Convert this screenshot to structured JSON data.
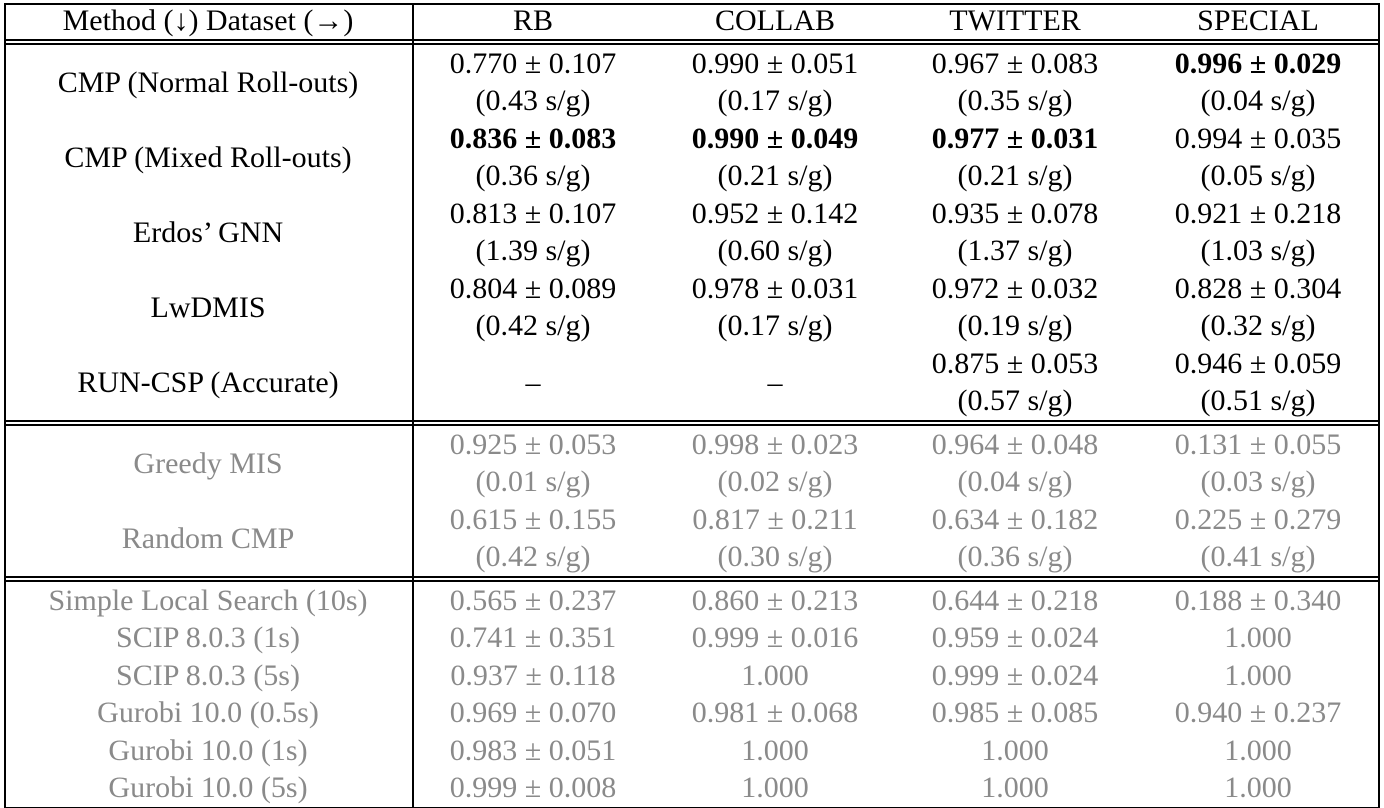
{
  "table": {
    "header": [
      "Method (↓) Dataset (→)",
      "RB",
      "COLLAB",
      "TWITTER",
      "SPECIAL"
    ],
    "groups": [
      {
        "color": "#000000",
        "rows": [
          {
            "method": "CMP (Normal Roll-outs)",
            "cells": [
              {
                "score": "0.770 ± 0.107",
                "time": "(0.43 s/g)"
              },
              {
                "score": "0.990 ± 0.051",
                "time": "(0.17 s/g)"
              },
              {
                "score": "0.967 ± 0.083",
                "time": "(0.35 s/g)"
              },
              {
                "score": "0.996 ± 0.029",
                "time": "(0.04 s/g)",
                "bold": true
              }
            ]
          },
          {
            "method": "CMP (Mixed Roll-outs)",
            "cells": [
              {
                "score": "0.836 ± 0.083",
                "time": "(0.36 s/g)",
                "bold": true
              },
              {
                "score": "0.990 ± 0.049",
                "time": "(0.21 s/g)",
                "bold": true
              },
              {
                "score": "0.977 ± 0.031",
                "time": "(0.21 s/g)",
                "bold": true
              },
              {
                "score": "0.994 ± 0.035",
                "time": "(0.05 s/g)"
              }
            ]
          },
          {
            "method": "Erdos’ GNN",
            "cells": [
              {
                "score": "0.813 ± 0.107",
                "time": "(1.39 s/g)"
              },
              {
                "score": "0.952 ± 0.142",
                "time": "(0.60 s/g)"
              },
              {
                "score": "0.935 ± 0.078",
                "time": "(1.37 s/g)"
              },
              {
                "score": "0.921 ± 0.218",
                "time": "(1.03 s/g)"
              }
            ]
          },
          {
            "method": "LwDMIS",
            "cells": [
              {
                "score": "0.804 ± 0.089",
                "time": "(0.42 s/g)"
              },
              {
                "score": "0.978 ± 0.031",
                "time": "(0.17 s/g)"
              },
              {
                "score": "0.972 ± 0.032",
                "time": "(0.19 s/g)"
              },
              {
                "score": "0.828 ± 0.304",
                "time": "(0.32 s/g)"
              }
            ]
          },
          {
            "method": "RUN-CSP (Accurate)",
            "cells": [
              {
                "score": "–"
              },
              {
                "score": "–"
              },
              {
                "score": "0.875 ± 0.053",
                "time": "(0.57 s/g)"
              },
              {
                "score": "0.946 ± 0.059",
                "time": "(0.51 s/g)"
              }
            ]
          }
        ]
      },
      {
        "color": "#8a8a8a",
        "rows": [
          {
            "method": "Greedy MIS",
            "cells": [
              {
                "score": "0.925 ± 0.053",
                "time": "(0.01 s/g)"
              },
              {
                "score": "0.998 ± 0.023",
                "time": "(0.02 s/g)"
              },
              {
                "score": "0.964 ± 0.048",
                "time": "(0.04 s/g)"
              },
              {
                "score": "0.131 ± 0.055",
                "time": "(0.03 s/g)"
              }
            ]
          },
          {
            "method": "Random CMP",
            "cells": [
              {
                "score": "0.615 ± 0.155",
                "time": "(0.42 s/g)"
              },
              {
                "score": "0.817 ± 0.211",
                "time": "(0.30 s/g)"
              },
              {
                "score": "0.634 ± 0.182",
                "time": "(0.36 s/g)"
              },
              {
                "score": "0.225 ± 0.279",
                "time": "(0.41 s/g)"
              }
            ]
          }
        ]
      },
      {
        "color": "#8a8a8a",
        "rows": [
          {
            "method": "Simple Local Search (10s)",
            "cells": [
              {
                "score": "0.565 ± 0.237"
              },
              {
                "score": "0.860 ± 0.213"
              },
              {
                "score": "0.644 ± 0.218"
              },
              {
                "score": "0.188 ± 0.340"
              }
            ]
          },
          {
            "method": "SCIP 8.0.3 (1s)",
            "cells": [
              {
                "score": "0.741 ± 0.351"
              },
              {
                "score": "0.999 ± 0.016"
              },
              {
                "score": "0.959 ± 0.024"
              },
              {
                "score": "1.000"
              }
            ]
          },
          {
            "method": "SCIP 8.0.3 (5s)",
            "cells": [
              {
                "score": "0.937 ± 0.118"
              },
              {
                "score": "1.000"
              },
              {
                "score": "0.999 ± 0.024"
              },
              {
                "score": "1.000"
              }
            ]
          },
          {
            "method": "Gurobi 10.0 (0.5s)",
            "cells": [
              {
                "score": "0.969 ± 0.070"
              },
              {
                "score": "0.981 ± 0.068"
              },
              {
                "score": "0.985 ± 0.085"
              },
              {
                "score": "0.940 ± 0.237"
              }
            ]
          },
          {
            "method": "Gurobi 10.0 (1s)",
            "cells": [
              {
                "score": "0.983 ± 0.051"
              },
              {
                "score": "1.000"
              },
              {
                "score": "1.000"
              },
              {
                "score": "1.000"
              }
            ]
          },
          {
            "method": "Gurobi 10.0 (5s)",
            "cells": [
              {
                "score": "0.999 ± 0.008"
              },
              {
                "score": "1.000"
              },
              {
                "score": "1.000"
              },
              {
                "score": "1.000"
              }
            ]
          }
        ]
      }
    ]
  }
}
